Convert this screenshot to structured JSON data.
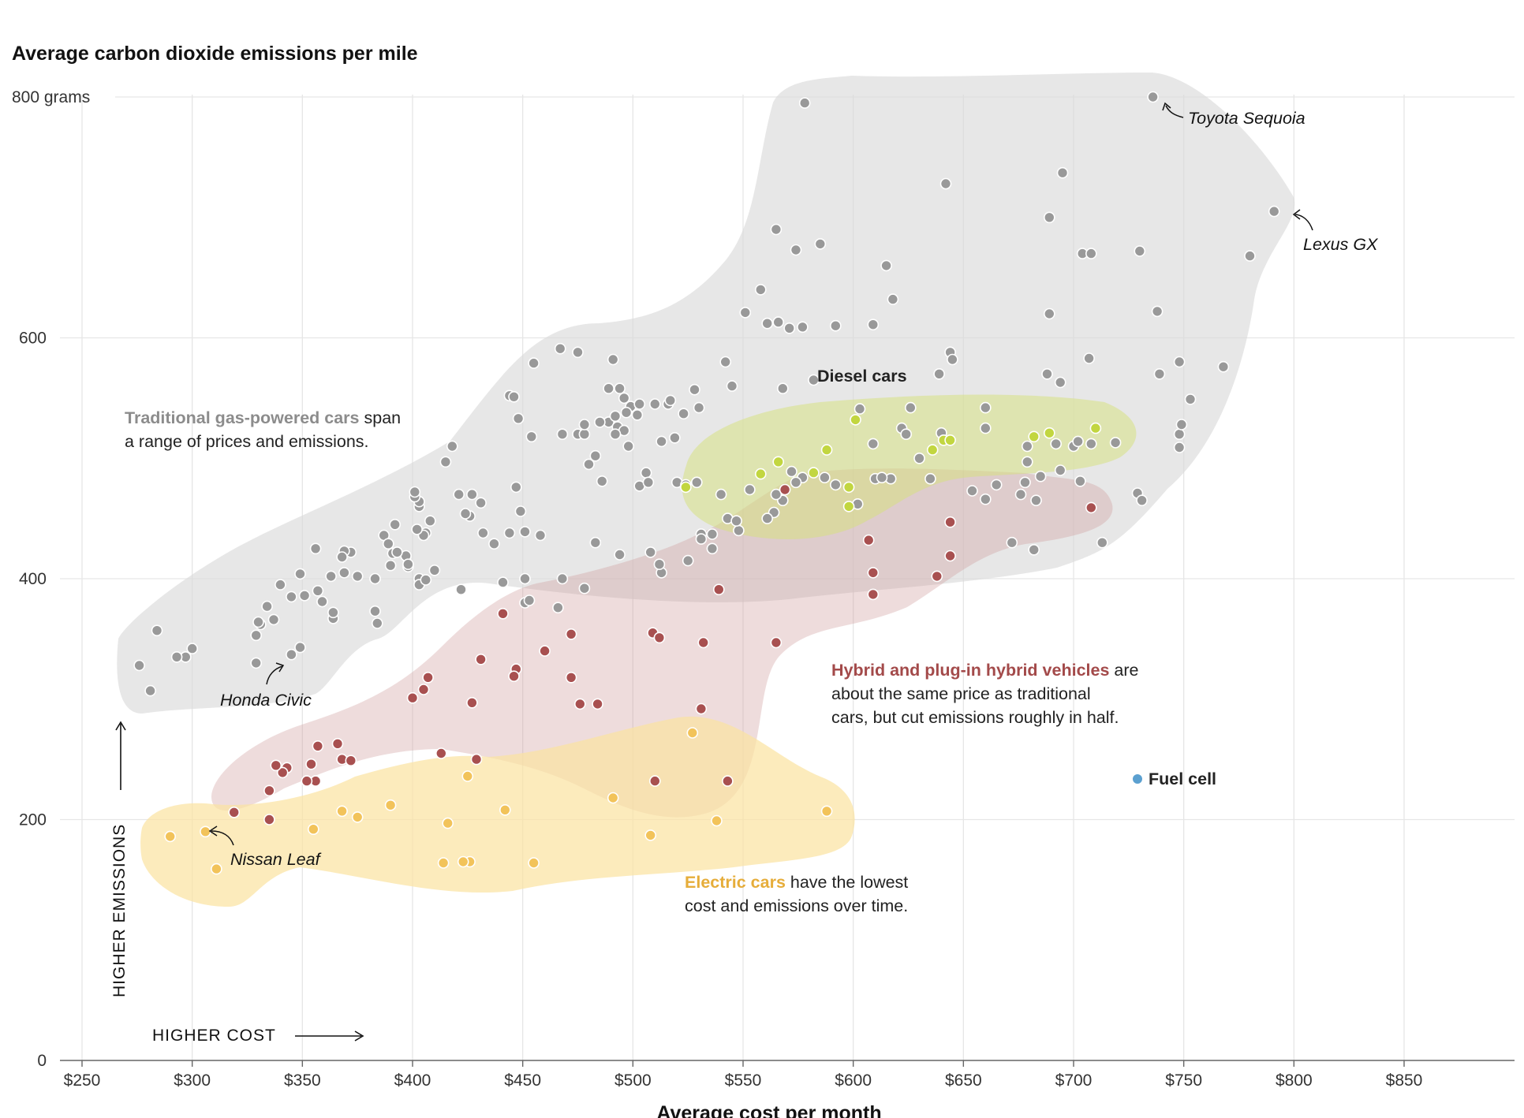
{
  "chart_data": {
    "type": "scatter",
    "title": "Average carbon dioxide emissions per mile",
    "xlabel": "Average cost per month",
    "ylabel": "",
    "xlim": [
      240,
      905
    ],
    "ylim": [
      0,
      800
    ],
    "x_ticks": [
      "$250",
      "$300",
      "$350",
      "$400",
      "$450",
      "$500",
      "$550",
      "$600",
      "$650",
      "$700",
      "$750",
      "$800",
      "$850"
    ],
    "x_tick_values": [
      250,
      300,
      350,
      400,
      450,
      500,
      550,
      600,
      650,
      700,
      750,
      800,
      850
    ],
    "y_ticks": [
      "0",
      "200",
      "400",
      "600",
      "800 grams"
    ],
    "y_tick_values": [
      0,
      200,
      400,
      600,
      800
    ],
    "direction_labels": {
      "x": "HIGHER COST",
      "y": "HIGHER EMISSIONS"
    },
    "series": [
      {
        "name": "Traditional gas-powered cars",
        "color": "#999999",
        "points": [
          [
            578,
            795
          ],
          [
            736,
            800
          ],
          [
            642,
            728
          ],
          [
            695,
            737
          ],
          [
            791,
            705
          ],
          [
            689,
            700
          ],
          [
            565,
            690
          ],
          [
            585,
            678
          ],
          [
            574,
            673
          ],
          [
            704,
            670
          ],
          [
            708,
            670
          ],
          [
            730,
            672
          ],
          [
            780,
            668
          ],
          [
            615,
            660
          ],
          [
            558,
            640
          ],
          [
            618,
            632
          ],
          [
            551,
            621
          ],
          [
            561,
            612
          ],
          [
            566,
            613
          ],
          [
            571,
            608
          ],
          [
            577,
            609
          ],
          [
            592,
            610
          ],
          [
            609,
            611
          ],
          [
            689,
            620
          ],
          [
            738,
            622
          ],
          [
            467,
            591
          ],
          [
            475,
            588
          ],
          [
            491,
            582
          ],
          [
            455,
            579
          ],
          [
            542,
            580
          ],
          [
            644,
            588
          ],
          [
            645,
            582
          ],
          [
            639,
            570
          ],
          [
            688,
            570
          ],
          [
            694,
            563
          ],
          [
            707,
            583
          ],
          [
            739,
            570
          ],
          [
            748,
            580
          ],
          [
            753,
            549
          ],
          [
            768,
            576
          ],
          [
            545,
            560
          ],
          [
            528,
            557
          ],
          [
            568,
            558
          ],
          [
            582,
            565
          ],
          [
            489,
            558
          ],
          [
            494,
            558
          ],
          [
            496,
            550
          ],
          [
            499,
            543
          ],
          [
            503,
            545
          ],
          [
            497,
            538
          ],
          [
            444,
            552
          ],
          [
            446,
            551
          ],
          [
            448,
            533
          ],
          [
            510,
            545
          ],
          [
            516,
            545
          ],
          [
            517,
            548
          ],
          [
            513,
            514
          ],
          [
            523,
            537
          ],
          [
            530,
            542
          ],
          [
            475,
            520
          ],
          [
            478,
            520
          ],
          [
            478,
            528
          ],
          [
            489,
            530
          ],
          [
            492,
            535
          ],
          [
            493,
            526
          ],
          [
            496,
            523
          ],
          [
            498,
            510
          ],
          [
            502,
            536
          ],
          [
            454,
            518
          ],
          [
            468,
            520
          ],
          [
            480,
            495
          ],
          [
            483,
            502
          ],
          [
            485,
            530
          ],
          [
            492,
            520
          ],
          [
            486,
            481
          ],
          [
            503,
            477
          ],
          [
            506,
            488
          ],
          [
            507,
            480
          ],
          [
            519,
            517
          ],
          [
            520,
            480
          ],
          [
            524,
            478
          ],
          [
            529,
            480
          ],
          [
            540,
            470
          ],
          [
            553,
            474
          ],
          [
            568,
            465
          ],
          [
            572,
            489
          ],
          [
            577,
            484
          ],
          [
            603,
            541
          ],
          [
            609,
            512
          ],
          [
            610,
            483
          ],
          [
            617,
            483
          ],
          [
            622,
            525
          ],
          [
            624,
            520
          ],
          [
            626,
            542
          ],
          [
            630,
            500
          ],
          [
            635,
            483
          ],
          [
            640,
            521
          ],
          [
            660,
            542
          ],
          [
            660,
            525
          ],
          [
            678,
            480
          ],
          [
            679,
            497
          ],
          [
            679,
            510
          ],
          [
            685,
            485
          ],
          [
            683,
            465
          ],
          [
            692,
            512
          ],
          [
            694,
            490
          ],
          [
            700,
            510
          ],
          [
            702,
            514
          ],
          [
            703,
            481
          ],
          [
            708,
            512
          ],
          [
            719,
            513
          ],
          [
            729,
            471
          ],
          [
            731,
            465
          ],
          [
            748,
            520
          ],
          [
            748,
            509
          ],
          [
            749,
            528
          ],
          [
            660,
            466
          ],
          [
            654,
            473
          ],
          [
            665,
            478
          ],
          [
            676,
            470
          ],
          [
            613,
            484
          ],
          [
            602,
            462
          ],
          [
            592,
            478
          ],
          [
            587,
            484
          ],
          [
            574,
            480
          ],
          [
            565,
            470
          ],
          [
            564,
            455
          ],
          [
            561,
            450
          ],
          [
            543,
            450
          ],
          [
            548,
            440
          ],
          [
            547,
            448
          ],
          [
            536,
            425
          ],
          [
            536,
            437
          ],
          [
            531,
            437
          ],
          [
            531,
            433
          ],
          [
            525,
            415
          ],
          [
            513,
            405
          ],
          [
            512,
            412
          ],
          [
            508,
            422
          ],
          [
            494,
            420
          ],
          [
            483,
            430
          ],
          [
            478,
            392
          ],
          [
            468,
            400
          ],
          [
            466,
            376
          ],
          [
            458,
            436
          ],
          [
            451,
            380
          ],
          [
            451,
            400
          ],
          [
            451,
            439
          ],
          [
            447,
            476
          ],
          [
            444,
            438
          ],
          [
            449,
            456
          ],
          [
            437,
            429
          ],
          [
            432,
            438
          ],
          [
            431,
            463
          ],
          [
            427,
            470
          ],
          [
            426,
            452
          ],
          [
            421,
            470
          ],
          [
            418,
            510
          ],
          [
            415,
            497
          ],
          [
            408,
            448
          ],
          [
            406,
            438
          ],
          [
            405,
            436
          ],
          [
            403,
            460
          ],
          [
            403,
            464
          ],
          [
            401,
            468
          ],
          [
            401,
            472
          ],
          [
            402,
            441
          ],
          [
            403,
            400
          ],
          [
            403,
            395
          ],
          [
            406,
            399
          ],
          [
            398,
            410
          ],
          [
            397,
            419
          ],
          [
            391,
            421
          ],
          [
            390,
            411
          ],
          [
            387,
            436
          ],
          [
            392,
            445
          ],
          [
            389,
            429
          ],
          [
            393,
            422
          ],
          [
            383,
            373
          ],
          [
            384,
            363
          ],
          [
            383,
            400
          ],
          [
            375,
            402
          ],
          [
            372,
            422
          ],
          [
            369,
            423
          ],
          [
            369,
            405
          ],
          [
            368,
            418
          ],
          [
            364,
            367
          ],
          [
            364,
            372
          ],
          [
            363,
            402
          ],
          [
            359,
            381
          ],
          [
            359,
            381
          ],
          [
            357,
            390
          ],
          [
            356,
            425
          ],
          [
            351,
            386
          ],
          [
            349,
            404
          ],
          [
            349,
            343
          ],
          [
            345,
            385
          ],
          [
            345,
            337
          ],
          [
            340,
            395
          ],
          [
            337,
            366
          ],
          [
            334,
            377
          ],
          [
            331,
            362
          ],
          [
            329,
            353
          ],
          [
            330,
            364
          ],
          [
            329,
            330
          ],
          [
            300,
            342
          ],
          [
            297,
            335
          ],
          [
            293,
            335
          ],
          [
            284,
            357
          ],
          [
            281,
            307
          ],
          [
            276,
            328
          ],
          [
            422,
            391
          ],
          [
            441,
            397
          ],
          [
            453,
            382
          ],
          [
            424,
            454
          ],
          [
            410,
            407
          ],
          [
            398,
            412
          ],
          [
            713,
            430
          ],
          [
            682,
            424
          ],
          [
            672,
            430
          ]
        ]
      },
      {
        "name": "Diesel cars",
        "color": "#c2d640",
        "points": [
          [
            601,
            532
          ],
          [
            588,
            507
          ],
          [
            582,
            488
          ],
          [
            566,
            497
          ],
          [
            558,
            487
          ],
          [
            524,
            476
          ],
          [
            598,
            476
          ],
          [
            598,
            460
          ],
          [
            636,
            507
          ],
          [
            641,
            515
          ],
          [
            644,
            515
          ],
          [
            682,
            518
          ],
          [
            689,
            521
          ],
          [
            710,
            525
          ]
        ]
      },
      {
        "name": "Hybrid and plug-in hybrid vehicles",
        "color": "#a85050",
        "points": [
          [
            569,
            474
          ],
          [
            644,
            447
          ],
          [
            644,
            419
          ],
          [
            638,
            402
          ],
          [
            607,
            432
          ],
          [
            609,
            405
          ],
          [
            609,
            387
          ],
          [
            708,
            459
          ],
          [
            539,
            391
          ],
          [
            565,
            347
          ],
          [
            532,
            347
          ],
          [
            509,
            355
          ],
          [
            512,
            351
          ],
          [
            531,
            292
          ],
          [
            510,
            232
          ],
          [
            543,
            232
          ],
          [
            460,
            340
          ],
          [
            472,
            354
          ],
          [
            472,
            318
          ],
          [
            476,
            296
          ],
          [
            484,
            296
          ],
          [
            431,
            333
          ],
          [
            429,
            250
          ],
          [
            427,
            297
          ],
          [
            447,
            325
          ],
          [
            446,
            319
          ],
          [
            441,
            371
          ],
          [
            405,
            308
          ],
          [
            407,
            318
          ],
          [
            400,
            301
          ],
          [
            413,
            255
          ],
          [
            366,
            263
          ],
          [
            368,
            250
          ],
          [
            372,
            249
          ],
          [
            357,
            261
          ],
          [
            356,
            232
          ],
          [
            354,
            246
          ],
          [
            352,
            232
          ],
          [
            343,
            243
          ],
          [
            341,
            239
          ],
          [
            338,
            245
          ],
          [
            335,
            224
          ],
          [
            335,
            200
          ],
          [
            319,
            206
          ]
        ]
      },
      {
        "name": "Electric cars",
        "color": "#f2c35a",
        "points": [
          [
            527,
            272
          ],
          [
            491,
            218
          ],
          [
            538,
            199
          ],
          [
            508,
            187
          ],
          [
            588,
            207
          ],
          [
            425,
            236
          ],
          [
            442,
            208
          ],
          [
            455,
            164
          ],
          [
            416,
            197
          ],
          [
            426,
            165
          ],
          [
            423,
            165
          ],
          [
            414,
            164
          ],
          [
            390,
            212
          ],
          [
            375,
            202
          ],
          [
            368,
            207
          ],
          [
            355,
            192
          ],
          [
            306,
            190
          ],
          [
            311,
            159
          ],
          [
            290,
            186
          ]
        ]
      },
      {
        "name": "Fuel cell",
        "color": "#5ba0d0",
        "points": [
          [
            728,
            238
          ]
        ]
      }
    ],
    "annotations": [
      {
        "text": "Toyota Sequoia",
        "x": 736,
        "y": 800
      },
      {
        "text": "Lexus GX",
        "x": 791,
        "y": 705
      },
      {
        "text": "Honda Civic",
        "x": 345,
        "y": 337
      },
      {
        "text": "Nissan Leaf",
        "x": 306,
        "y": 190
      }
    ]
  },
  "labels": {
    "gas_bold": "Traditional gas-powered cars",
    "gas_rest": " span",
    "gas_line2": "a range of prices and emissions.",
    "diesel": "Diesel cars",
    "hybrid_bold": "Hybrid and plug-in hybrid vehicles",
    "hybrid_rest": " are",
    "hybrid_line2": "about the same price as traditional",
    "hybrid_line3": "cars, but cut emissions roughly in half.",
    "electric_bold": "Electric cars",
    "electric_rest": " have the lowest",
    "electric_line2": "cost and emissions over time.",
    "fuel_cell": "Fuel cell"
  },
  "colors": {
    "gas_text": "#8c8c8c",
    "diesel_text": "#9fb034",
    "hybrid_text": "#a34a4a",
    "electric_text": "#e6ad3a",
    "fuel_text": "#5ba0d0"
  }
}
